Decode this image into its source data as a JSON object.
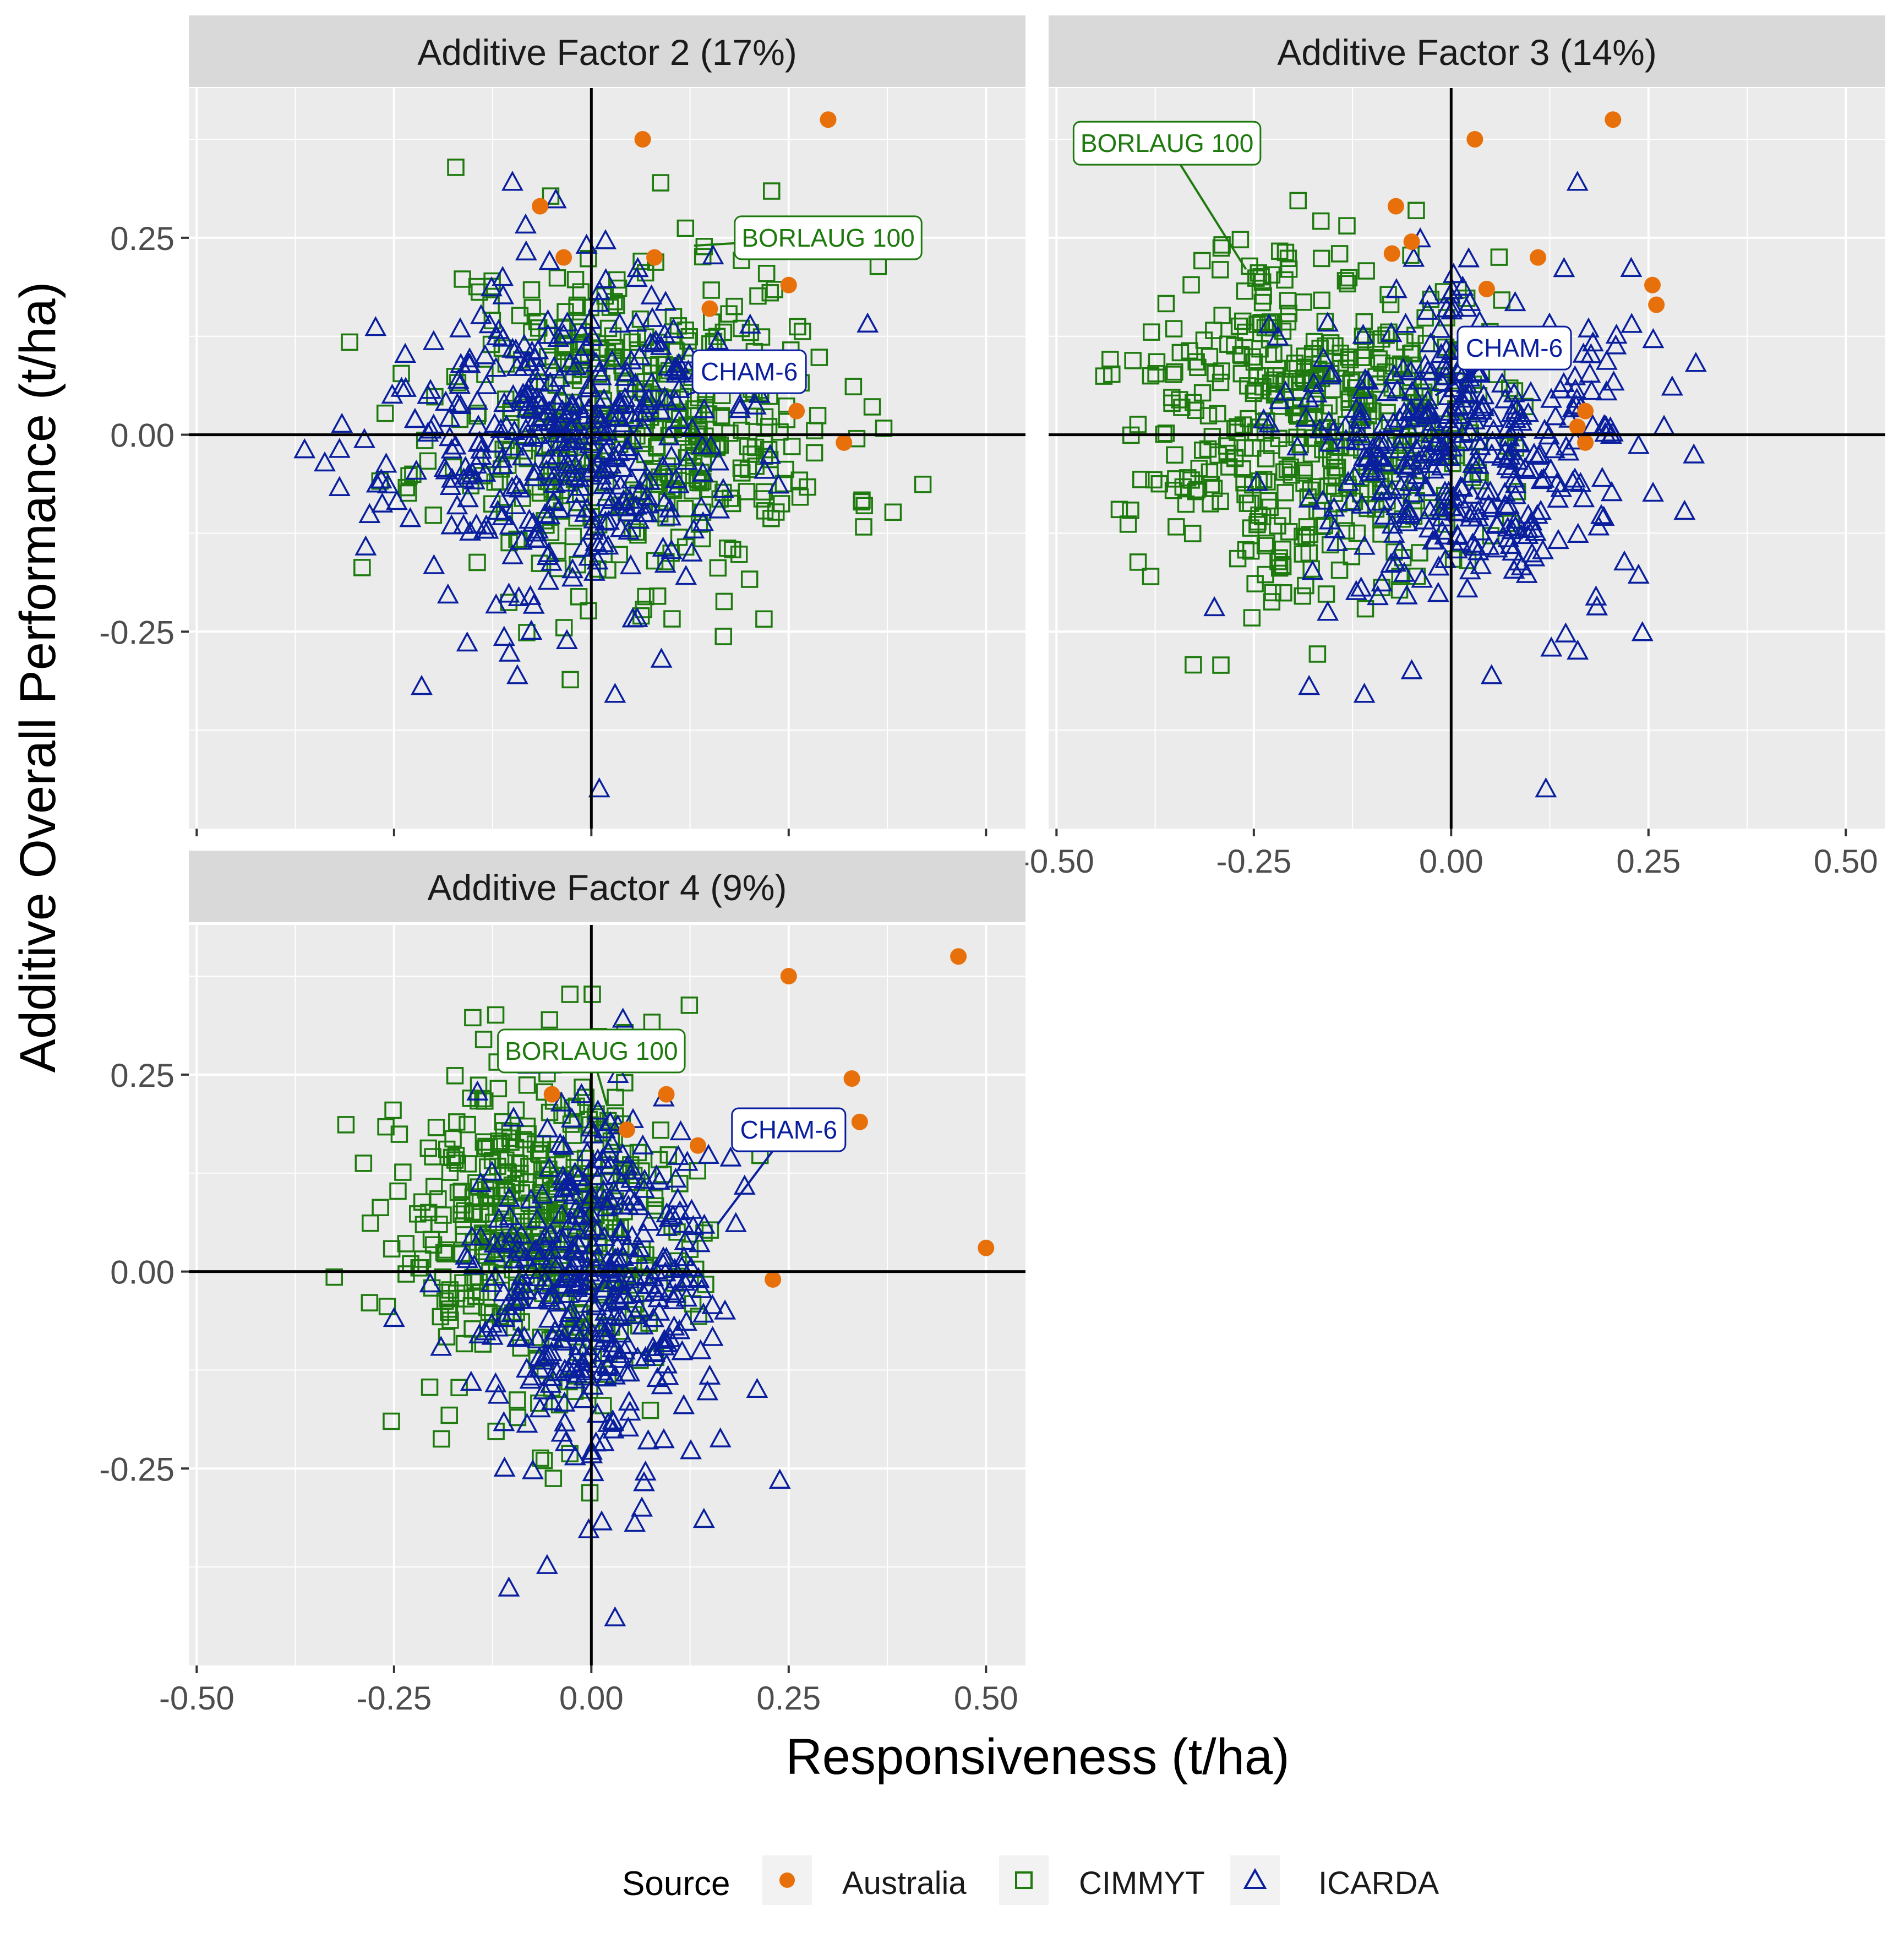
{
  "chart_data": {
    "type": "scatter",
    "xlabel": "Responsiveness (t/ha)",
    "ylabel": "Additive Overall Performance (t/ha)",
    "xlim": [
      -0.51,
      0.55
    ],
    "ylim": [
      -0.5,
      0.44
    ],
    "xticks": [
      -0.5,
      -0.25,
      0.0,
      0.25,
      0.5
    ],
    "xtick_labels": [
      "-0.50",
      "-0.25",
      "0.00",
      "0.25",
      "0.50"
    ],
    "yticks": [
      -0.25,
      0.0,
      0.25
    ],
    "ytick_labels": [
      "-0.25",
      "0.00",
      "0.25"
    ],
    "grid": true,
    "legend": {
      "title": "Source",
      "position": "bottom",
      "entries": [
        {
          "label": "Australia",
          "marker": "circle",
          "color": "#E8700A"
        },
        {
          "label": "CIMMYT",
          "marker": "square",
          "color": "#1E7A0E"
        },
        {
          "label": "ICARDA",
          "marker": "triangle",
          "color": "#0A1F9E"
        }
      ]
    },
    "series_colors": {
      "Australia": "#E8700A",
      "CIMMYT": "#1E7A0E",
      "ICARDA": "#0A1F9E"
    },
    "panels": [
      {
        "title": "Additive Factor 2 (17%)",
        "australia": {
          "x": [
            0.3,
            0.065,
            -0.065,
            -0.035,
            0.08,
            0.15,
            0.25,
            0.26,
            0.32
          ],
          "y": [
            0.4,
            0.375,
            0.29,
            0.225,
            0.225,
            0.16,
            0.19,
            0.03,
            -0.01
          ]
        },
        "cimmyt": {
          "n": 430,
          "x_center": 0.06,
          "x_sd": 0.13,
          "y_center": 0.02,
          "y_sd": 0.11,
          "seed": 11
        },
        "icarda": {
          "n": 400,
          "x_center": -0.04,
          "x_sd": 0.11,
          "y_center": -0.01,
          "y_sd": 0.1,
          "seed": 23
        },
        "icarda_extra": {
          "x": [
            -0.1,
            -0.215,
            0.01,
            0.03,
            0.35
          ],
          "y": [
            0.32,
            -0.32,
            -0.45,
            -0.33,
            0.14
          ]
        },
        "labels": [
          {
            "text": "BORLAUG 100",
            "series": "CIMMYT",
            "point": [
              0.13,
              0.24
            ],
            "box": [
              0.3,
              0.25
            ]
          },
          {
            "text": "CHAM-6",
            "series": "ICARDA",
            "point": [
              0.12,
              0.05
            ],
            "box": [
              0.2,
              0.08
            ]
          }
        ]
      },
      {
        "title": "Additive Factor 3 (14%)",
        "australia": {
          "x": [
            0.205,
            0.03,
            -0.07,
            -0.05,
            -0.075,
            0.11,
            0.045,
            0.255,
            0.26,
            0.17,
            0.16,
            0.17
          ],
          "y": [
            0.4,
            0.375,
            0.29,
            0.245,
            0.23,
            0.225,
            0.185,
            0.19,
            0.165,
            0.03,
            0.01,
            -0.01
          ]
        },
        "cimmyt": {
          "n": 460,
          "x_center": -0.17,
          "x_sd": 0.11,
          "y_center": 0.03,
          "y_sd": 0.11,
          "seed": 37
        },
        "icarda": {
          "n": 400,
          "x_center": 0.02,
          "x_sd": 0.11,
          "y_center": -0.02,
          "y_sd": 0.1,
          "seed": 41
        },
        "icarda_extra": {
          "x": [
            0.16,
            0.12,
            -0.18,
            -0.11,
            -0.05,
            0.31,
            0.28,
            -0.3
          ],
          "y": [
            0.32,
            -0.45,
            -0.32,
            -0.33,
            -0.3,
            0.09,
            0.06,
            -0.22
          ]
        },
        "labels": [
          {
            "text": "BORLAUG 100",
            "series": "CIMMYT",
            "point": [
              -0.26,
              0.21
            ],
            "box": [
              -0.36,
              0.37
            ]
          },
          {
            "text": "CHAM-6",
            "series": "ICARDA",
            "point": [
              -0.02,
              0.05
            ],
            "box": [
              0.08,
              0.11
            ]
          }
        ]
      },
      {
        "title": "Additive Factor 4 (9%)",
        "australia": {
          "x": [
            0.465,
            0.25,
            0.33,
            0.34,
            0.095,
            -0.05,
            0.045,
            0.135,
            0.5,
            0.23
          ],
          "y": [
            0.4,
            0.375,
            0.245,
            0.19,
            0.225,
            0.225,
            0.18,
            0.16,
            0.03,
            -0.01
          ]
        },
        "cimmyt": {
          "n": 430,
          "x_center": -0.06,
          "x_sd": 0.1,
          "y_center": 0.05,
          "y_sd": 0.11,
          "seed": 53
        },
        "icarda": {
          "n": 400,
          "x_center": 0.0,
          "x_sd": 0.07,
          "y_center": -0.03,
          "y_sd": 0.11,
          "seed": 67
        },
        "icarda_extra": {
          "x": [
            0.03,
            0.04,
            0.055,
            0.21,
            -0.25,
            -0.11
          ],
          "y": [
            -0.44,
            0.32,
            -0.32,
            -0.15,
            -0.06,
            -0.25
          ]
        },
        "labels": [
          {
            "text": "BORLAUG 100",
            "series": "CIMMYT",
            "point": [
              0.02,
              0.21
            ],
            "box": [
              0.0,
              0.28
            ]
          },
          {
            "text": "CHAM-6",
            "series": "ICARDA",
            "point": [
              0.16,
              0.06
            ],
            "box": [
              0.25,
              0.18
            ]
          }
        ]
      }
    ]
  }
}
